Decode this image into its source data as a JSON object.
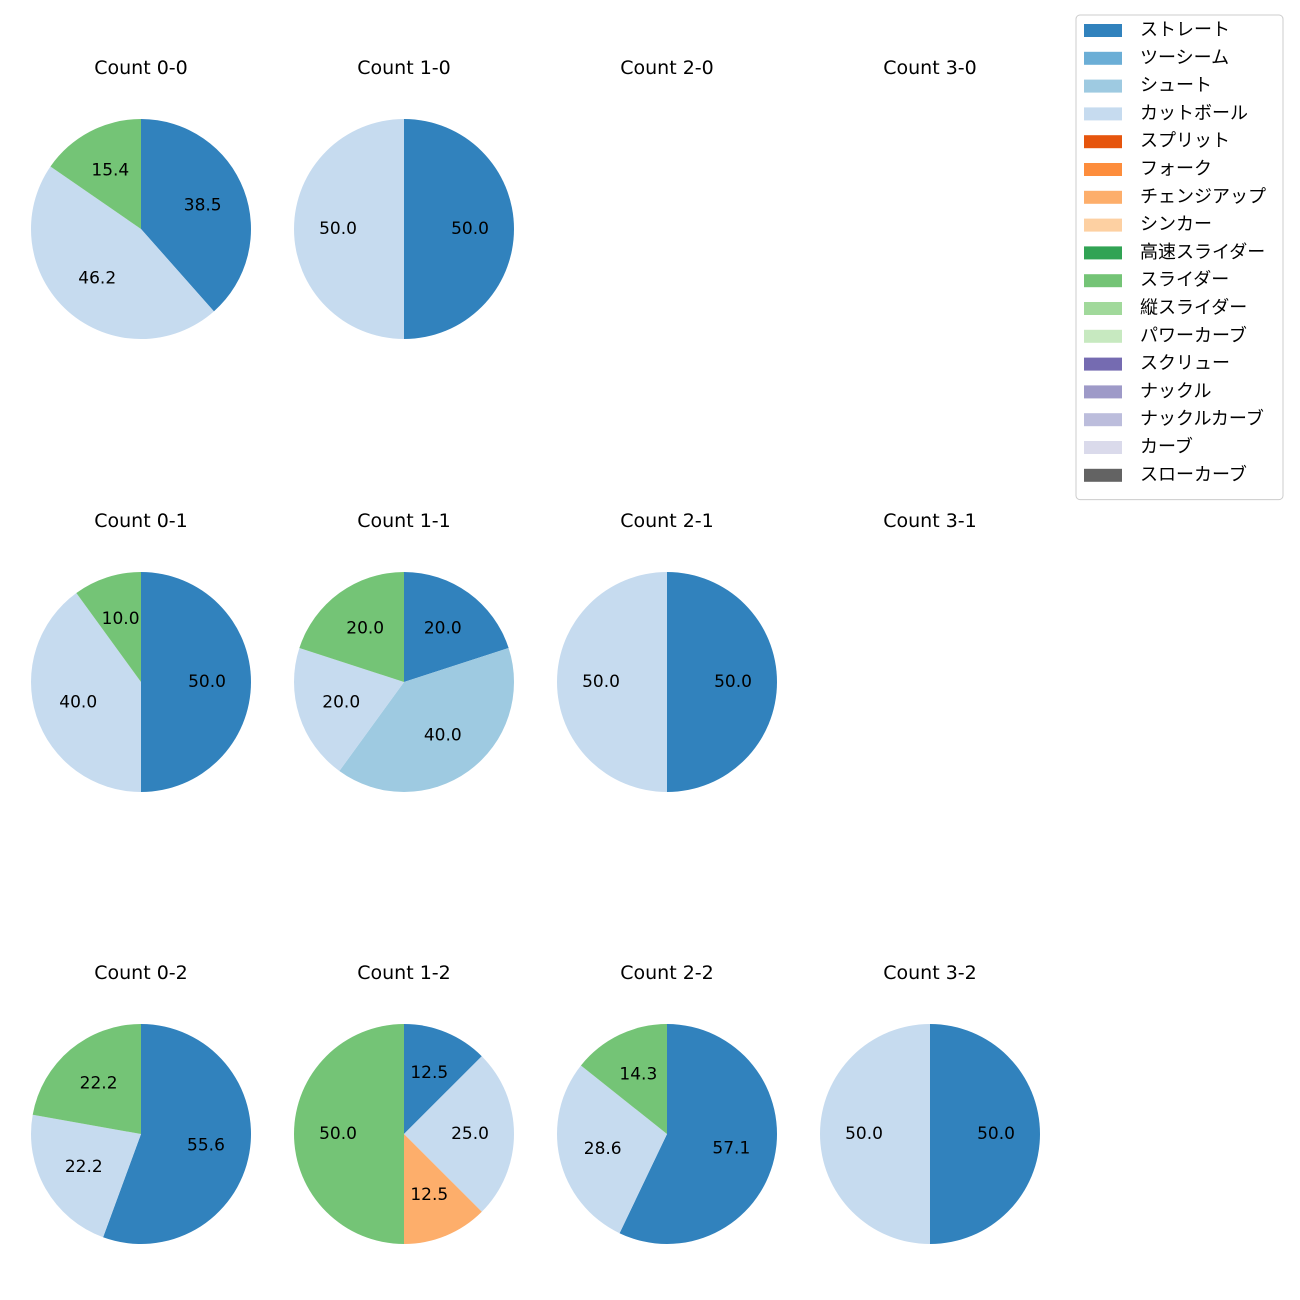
{
  "chart_data": {
    "type": "pie",
    "legend": {
      "placement": "top-right",
      "entries": [
        {
          "name": "ストレート",
          "color": "#3182bd"
        },
        {
          "name": "ツーシーム",
          "color": "#6baed6"
        },
        {
          "name": "シュート",
          "color": "#9ecae1"
        },
        {
          "name": "カットボール",
          "color": "#c6dbef"
        },
        {
          "name": "スプリット",
          "color": "#e6550d"
        },
        {
          "name": "フォーク",
          "color": "#fd8d3c"
        },
        {
          "name": "チェンジアップ",
          "color": "#fdae6b"
        },
        {
          "name": "シンカー",
          "color": "#fdd0a2"
        },
        {
          "name": "高速スライダー",
          "color": "#31a354"
        },
        {
          "name": "スライダー",
          "color": "#74c476"
        },
        {
          "name": "縦スライダー",
          "color": "#a1d99b"
        },
        {
          "name": "パワーカーブ",
          "color": "#c7e9c0"
        },
        {
          "name": "スクリュー",
          "color": "#756bb1"
        },
        {
          "name": "ナックル",
          "color": "#9e9ac8"
        },
        {
          "name": "ナックルカーブ",
          "color": "#bcbddc"
        },
        {
          "name": "カーブ",
          "color": "#dadaeb"
        },
        {
          "name": "スローカーブ",
          "color": "#636363"
        }
      ]
    },
    "charts": [
      {
        "title": "Count 0-0",
        "slices": [
          {
            "pitch": "ストレート",
            "value": 38.5
          },
          {
            "pitch": "カットボール",
            "value": 46.2
          },
          {
            "pitch": "スライダー",
            "value": 15.4
          }
        ]
      },
      {
        "title": "Count 1-0",
        "slices": [
          {
            "pitch": "ストレート",
            "value": 50.0
          },
          {
            "pitch": "カットボール",
            "value": 50.0
          }
        ]
      },
      {
        "title": "Count 2-0",
        "slices": []
      },
      {
        "title": "Count 3-0",
        "slices": []
      },
      {
        "title": "Count 0-1",
        "slices": [
          {
            "pitch": "ストレート",
            "value": 50.0
          },
          {
            "pitch": "カットボール",
            "value": 40.0
          },
          {
            "pitch": "スライダー",
            "value": 10.0
          }
        ]
      },
      {
        "title": "Count 1-1",
        "slices": [
          {
            "pitch": "ストレート",
            "value": 20.0
          },
          {
            "pitch": "シュート",
            "value": 40.0
          },
          {
            "pitch": "カットボール",
            "value": 20.0
          },
          {
            "pitch": "スライダー",
            "value": 20.0
          }
        ]
      },
      {
        "title": "Count 2-1",
        "slices": [
          {
            "pitch": "ストレート",
            "value": 50.0
          },
          {
            "pitch": "カットボール",
            "value": 50.0
          }
        ]
      },
      {
        "title": "Count 3-1",
        "slices": []
      },
      {
        "title": "Count 0-2",
        "slices": [
          {
            "pitch": "ストレート",
            "value": 55.6
          },
          {
            "pitch": "カットボール",
            "value": 22.2
          },
          {
            "pitch": "スライダー",
            "value": 22.2
          }
        ]
      },
      {
        "title": "Count 1-2",
        "slices": [
          {
            "pitch": "ストレート",
            "value": 12.5
          },
          {
            "pitch": "カットボール",
            "value": 25.0
          },
          {
            "pitch": "チェンジアップ",
            "value": 12.5
          },
          {
            "pitch": "スライダー",
            "value": 50.0
          }
        ]
      },
      {
        "title": "Count 2-2",
        "slices": [
          {
            "pitch": "ストレート",
            "value": 57.1
          },
          {
            "pitch": "カットボール",
            "value": 28.6
          },
          {
            "pitch": "スライダー",
            "value": 14.3
          }
        ]
      },
      {
        "title": "Count 3-2",
        "slices": [
          {
            "pitch": "ストレート",
            "value": 50.0
          },
          {
            "pitch": "カットボール",
            "value": 50.0
          }
        ]
      }
    ]
  }
}
